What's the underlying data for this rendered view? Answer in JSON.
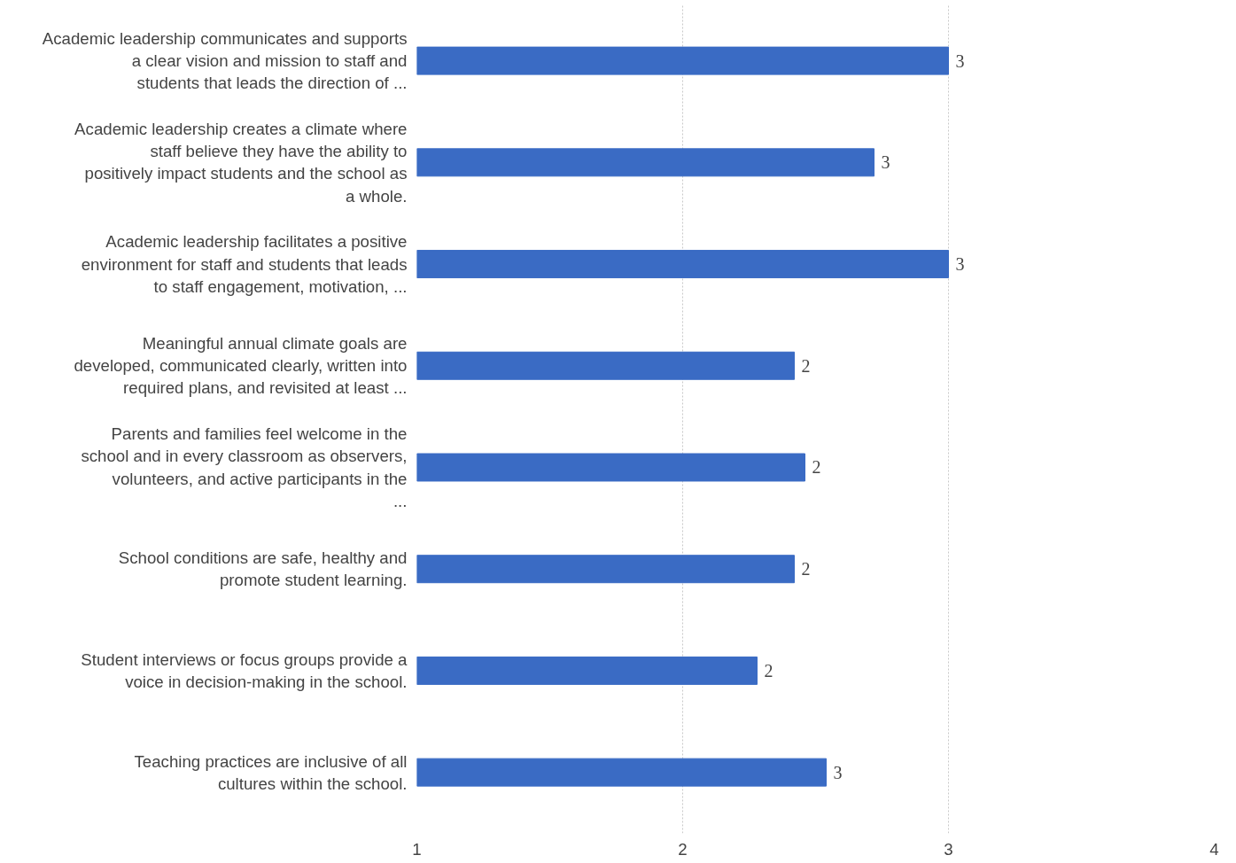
{
  "chart_data": {
    "type": "bar",
    "orientation": "horizontal",
    "categories": [
      "Academic leadership communicates and supports a clear vision and mission to staff and students that leads the direction of ...",
      "Academic leadership creates a climate where staff believe they have the ability to positively impact students and the school as a whole.",
      "Academic leadership facilitates a positive environment for staff and students that leads to staff engagement, motivation, ...",
      "Meaningful annual climate goals are developed, communicated clearly, written into required plans, and revisited at least ...",
      "Parents and families feel welcome in the school and in every classroom as observers, volunteers, and active participants in the ...",
      "School conditions are safe, healthy and promote student learning.",
      "Student interviews or focus groups provide a voice in decision-making in the school.",
      "Teaching practices are inclusive of all cultures within the school."
    ],
    "values": [
      3.0,
      2.72,
      3.0,
      2.42,
      2.46,
      2.42,
      2.28,
      2.54
    ],
    "value_labels": [
      "3",
      "3",
      "3",
      "2",
      "2",
      "2",
      "2",
      "3"
    ],
    "color": "#3a6bc4",
    "xlim": [
      1,
      4
    ],
    "xticks": [
      1,
      2,
      3,
      4
    ],
    "grid": "x"
  }
}
